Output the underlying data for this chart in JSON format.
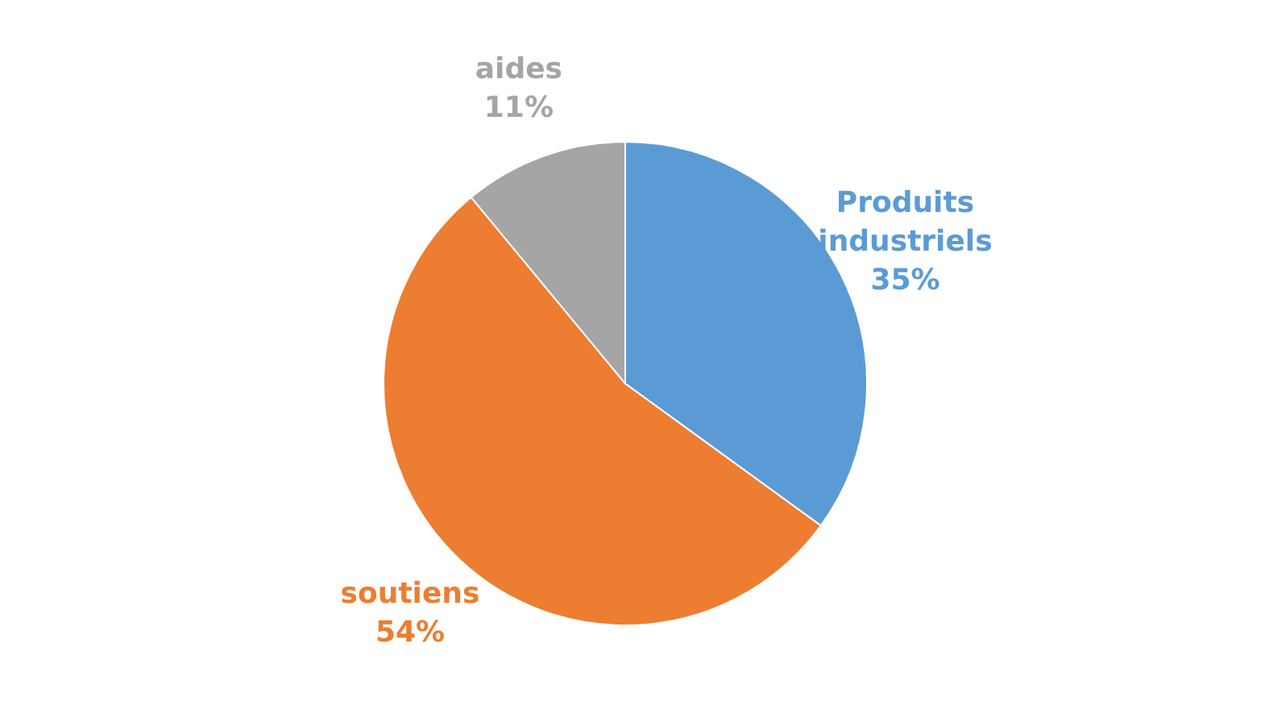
{
  "chart_data": {
    "type": "pie",
    "categories": [
      "Produits industriels",
      "soutiens",
      "aides"
    ],
    "values": [
      35,
      54,
      11
    ],
    "colors": [
      "#5b9bd5",
      "#ed7d31",
      "#a5a5a5"
    ],
    "value_labels": [
      "35%",
      "54%",
      "11%"
    ],
    "legend": false
  }
}
